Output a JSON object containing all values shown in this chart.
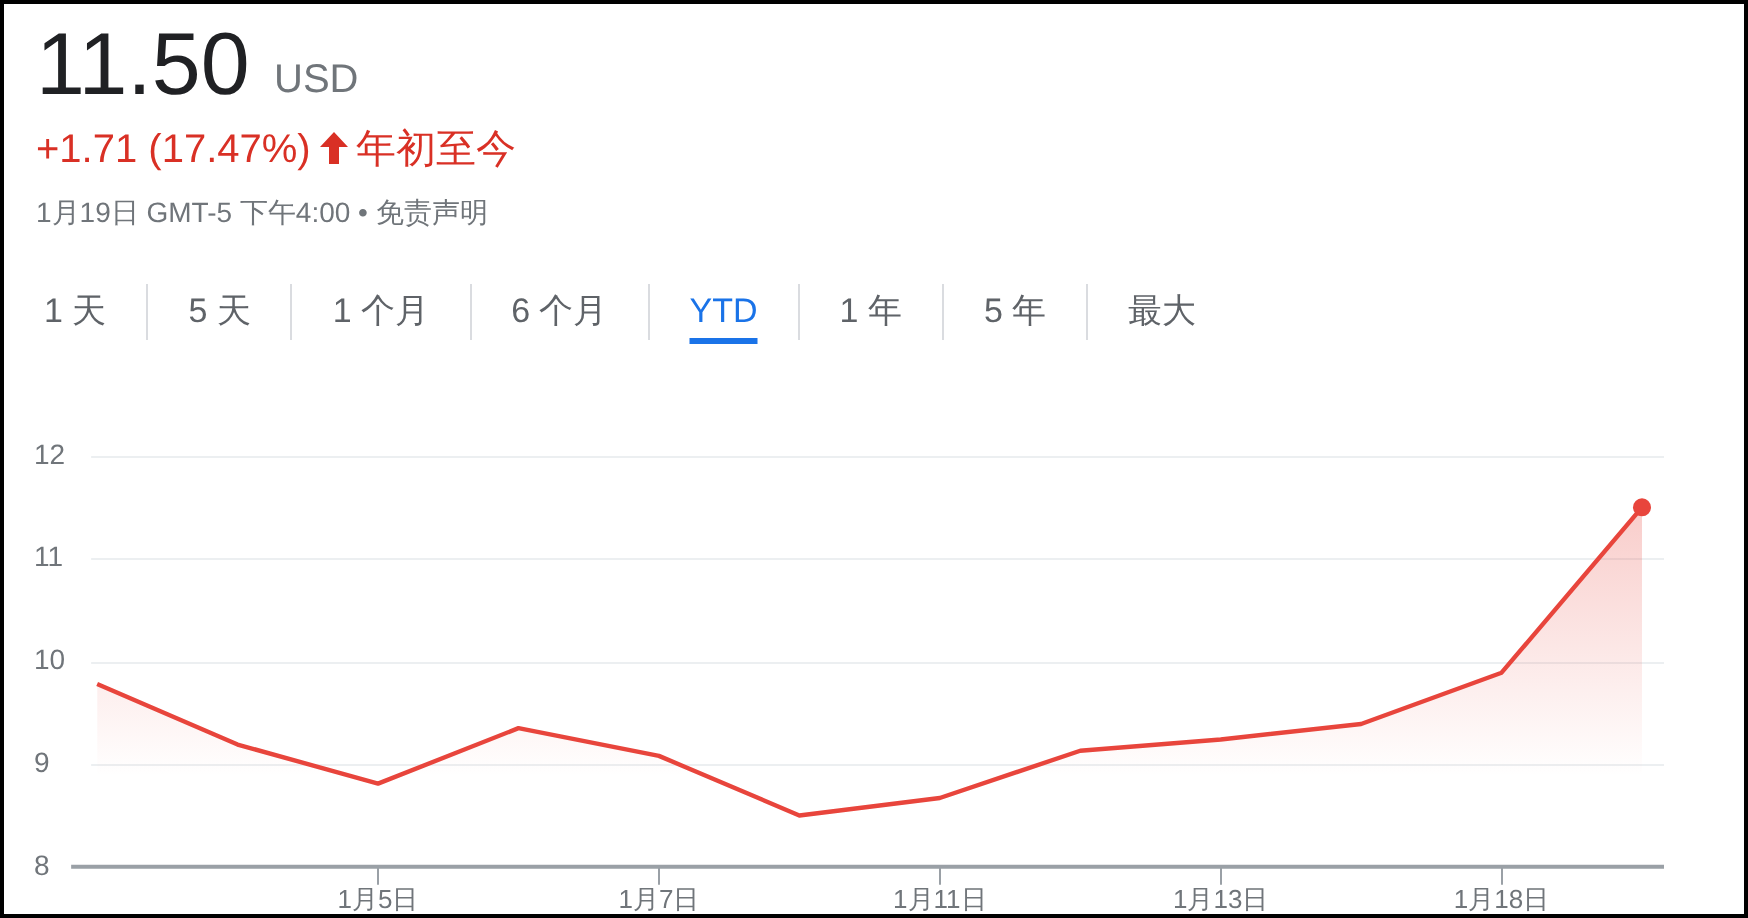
{
  "chart_data": {
    "type": "area",
    "title": "11.50",
    "annotations": [
      "USD",
      "+1.71 (17.47%)",
      "年初至今",
      "1月19日 GMT-5 下午4:00 • 免责声明",
      "1 天",
      "5 天",
      "1 个月",
      "6 个月",
      "YTD",
      "1 年",
      "5 年",
      "最大"
    ],
    "categories": [
      null,
      null,
      "1月5日",
      null,
      "1月7日",
      null,
      "1月11日",
      null,
      "1月13日",
      null,
      "1月18日",
      null
    ],
    "values": [
      9.78,
      9.19,
      8.81,
      9.35,
      9.08,
      8.5,
      8.67,
      9.13,
      9.24,
      9.39,
      9.89,
      11.5
    ],
    "color": "#e8453c",
    "ylim": [
      8,
      12
    ],
    "yticks": [
      8,
      9,
      10,
      11,
      12
    ],
    "grid": "y",
    "legend": false
  }
}
